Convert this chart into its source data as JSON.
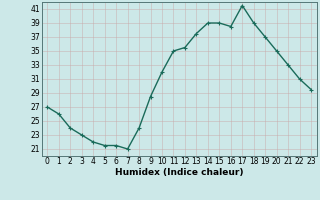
{
  "x": [
    0,
    1,
    2,
    3,
    4,
    5,
    6,
    7,
    8,
    9,
    10,
    11,
    12,
    13,
    14,
    15,
    16,
    17,
    18,
    19,
    20,
    21,
    22,
    23
  ],
  "y": [
    27,
    26,
    24,
    23,
    22,
    21.5,
    21.5,
    21,
    24,
    28.5,
    32,
    35,
    35.5,
    37.5,
    39,
    39,
    38.5,
    41.5,
    39,
    37,
    35,
    33,
    31,
    29.5
  ],
  "line_color": "#1a6b5a",
  "marker_color": "#1a6b5a",
  "bg_color": "#cce8e8",
  "grid_color": "#b8d4d4",
  "xlabel": "Humidex (Indice chaleur)",
  "xlim": [
    -0.5,
    23.5
  ],
  "ylim": [
    20,
    42
  ],
  "yticks": [
    21,
    23,
    25,
    27,
    29,
    31,
    33,
    35,
    37,
    39,
    41
  ],
  "xticks": [
    0,
    1,
    2,
    3,
    4,
    5,
    6,
    7,
    8,
    9,
    10,
    11,
    12,
    13,
    14,
    15,
    16,
    17,
    18,
    19,
    20,
    21,
    22,
    23
  ],
  "tick_fontsize": 5.5,
  "xlabel_fontsize": 6.5,
  "marker_size": 2.5,
  "line_width": 1.0
}
